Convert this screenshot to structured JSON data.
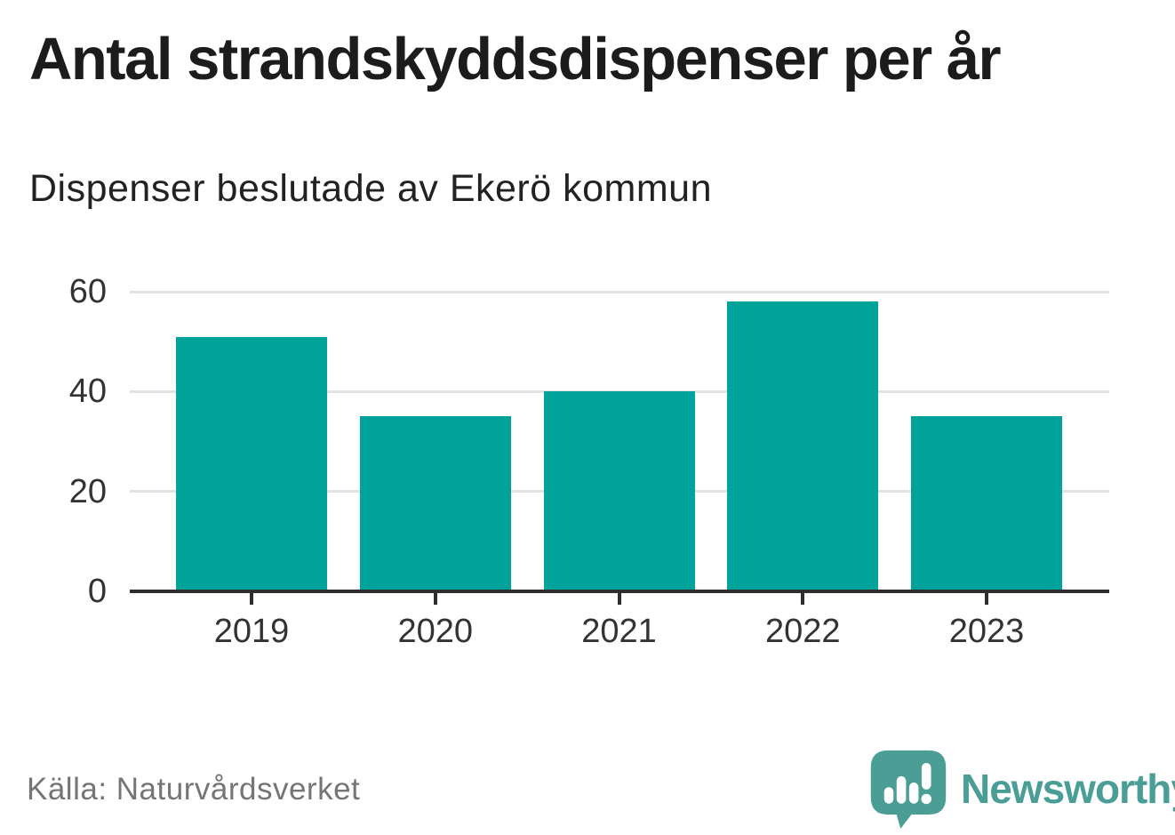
{
  "header": {
    "title": "Antal strandskyddsdispenser per år",
    "subtitle": "Dispenser beslutade av Ekerö kommun"
  },
  "footer": {
    "source": "Källa: Naturvårdsverket",
    "brand_name": "Newsworthy",
    "brand_icon": "newsworthy-speech-bubble-bar-chart-icon"
  },
  "colors": {
    "bar": "#00a39a",
    "title_text": "#1c1c1c",
    "axis_text": "#333333",
    "gridline": "#e2e2e2",
    "axis_line": "#2e2e2e",
    "source_text": "#757575",
    "brand_teal": "#4a9e96"
  },
  "chart_data": {
    "type": "bar",
    "title": "Antal strandskyddsdispenser per år",
    "subtitle": "Dispenser beslutade av Ekerö kommun",
    "source": "Källa: Naturvårdsverket",
    "categories": [
      "2019",
      "2020",
      "2021",
      "2022",
      "2023"
    ],
    "values": [
      51,
      35,
      40,
      58,
      35
    ],
    "series_name": "Dispenser",
    "xlabel": "",
    "ylabel": "",
    "ylim": [
      0,
      60
    ],
    "yticks": [
      0,
      20,
      40,
      60
    ],
    "grid": "horizontal",
    "legend": "none",
    "bar_color": "#00a39a"
  }
}
